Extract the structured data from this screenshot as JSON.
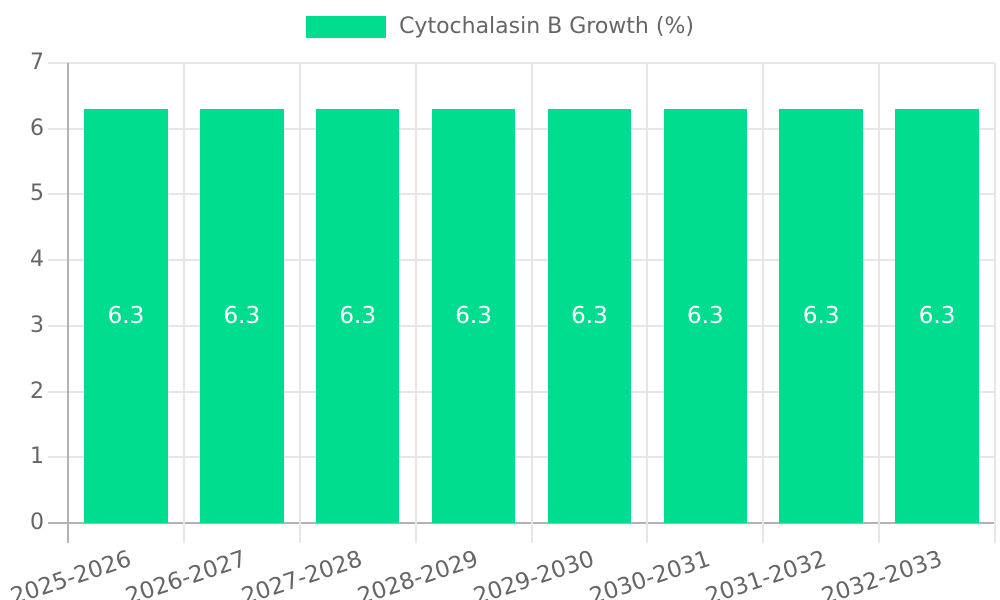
{
  "chart_data": {
    "type": "bar",
    "title": "Cytochalasin B Growth (%)",
    "series_name": "Cytochalasin B Growth (%)",
    "categories": [
      "2025-2026",
      "2026-2027",
      "2027-2028",
      "2028-2029",
      "2029-2030",
      "2030-2031",
      "2031-2032",
      "2032-2033"
    ],
    "values": [
      6.3,
      6.3,
      6.3,
      6.3,
      6.3,
      6.3,
      6.3,
      6.3
    ],
    "value_labels": [
      "6.3",
      "6.3",
      "6.3",
      "6.3",
      "6.3",
      "6.3",
      "6.3",
      "6.3"
    ],
    "xlabel": "",
    "ylabel": "",
    "ylim": [
      0,
      7
    ],
    "yticks": [
      0,
      1,
      2,
      3,
      4,
      5,
      6,
      7
    ],
    "grid": true,
    "legend_position": "top-center",
    "x_tick_rotation_deg": -18.4,
    "colors": {
      "bar": "#00DD8F",
      "bar_label": "#ffffff",
      "tick_text": "#666666",
      "legend_text": "#666666",
      "grid": "#e6e6e6",
      "axis": "#b3b3b3",
      "background": "#ffffff"
    }
  }
}
